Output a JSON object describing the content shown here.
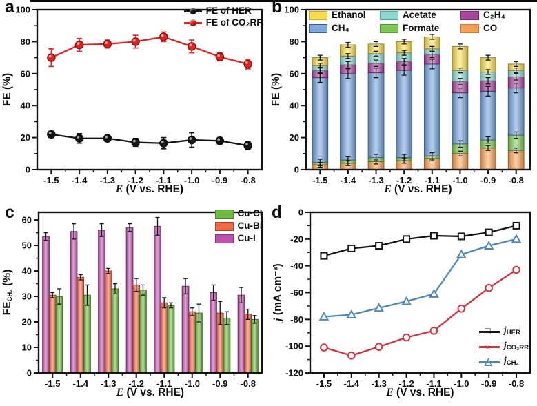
{
  "figure": {
    "background": "#ffffff",
    "frame_color": "#141414"
  },
  "shared": {
    "x_categories": [
      "-1.5",
      "-1.4",
      "-1.3",
      "-1.2",
      "-1.1",
      "-1.0",
      "-0.9",
      "-0.8"
    ],
    "xlabel": {
      "em": "E",
      "rest": " (V vs. RHE)"
    }
  },
  "panels": {
    "a": {
      "label": "a",
      "ylabel": {
        "main": "FE",
        "rest": " (%)"
      },
      "legend": [
        {
          "label": "FE of HER",
          "color": "#141414"
        },
        {
          "label": "FE of CO₂RR",
          "color": "#e3211f"
        }
      ]
    },
    "b": {
      "label": "b",
      "ylabel": {
        "main": "FE",
        "rest": " (%)"
      },
      "legend": [
        {
          "label": "Ethanol",
          "color": "#f7dc4e",
          "border": "#c9a727"
        },
        {
          "label": "Acetate",
          "color": "#8fd8d2",
          "border": "#49b0a8"
        },
        {
          "label": "C₂H₄",
          "color": "#a8479e",
          "border": "#7c2a74"
        },
        {
          "label": "CH₄",
          "color": "#7fa8dc",
          "border": "#2f62a8"
        },
        {
          "label": "Formate",
          "color": "#7dc453",
          "border": "#4f9a2e"
        },
        {
          "label": "CO",
          "color": "#f5a054",
          "border": "#d87828"
        }
      ]
    },
    "c": {
      "label": "c",
      "ylabel": {
        "main": "FE",
        "sub": "CH₄",
        "rest": " (%)"
      },
      "legend": [
        {
          "label": "Cu-Cl",
          "color": "#6cba3e",
          "border": "#47891f"
        },
        {
          "label": "Cu-Br",
          "color": "#ee6a48",
          "border": "#c43d1c"
        },
        {
          "label": "Cu-I",
          "color": "#c050ae",
          "border": "#8e2f7e"
        }
      ]
    },
    "d": {
      "label": "d",
      "ylabel": {
        "main": "j",
        "rest": " (mA cm⁻³)"
      },
      "legend": [
        {
          "main": "j",
          "sub": "HER",
          "glyph": "□",
          "color": "#141414"
        },
        {
          "main": "j",
          "sub": "CO₂RR",
          "glyph": "○",
          "color": "#d6303e"
        },
        {
          "main": "j",
          "sub": "CH₄",
          "glyph": "△",
          "color": "#4e87b5"
        }
      ]
    }
  },
  "chart_data": [
    {
      "panel": "a",
      "type": "line",
      "title": "",
      "xlabel": "E (V vs. RHE)",
      "ylabel": "FE (%)",
      "categories": [
        "-1.5",
        "-1.4",
        "-1.3",
        "-1.2",
        "-1.1",
        "-1.0",
        "-0.9",
        "-0.8"
      ],
      "ylim": [
        0,
        100
      ],
      "yticks": [
        0,
        20,
        40,
        60,
        80,
        100
      ],
      "legend_position": "top-right",
      "grid": false,
      "series": [
        {
          "name": "FE of HER",
          "color": "#141414",
          "marker": "circle",
          "marker_filled": true,
          "values": [
            22,
            19.5,
            19.5,
            17,
            16.5,
            18.5,
            18,
            15
          ],
          "err": [
            2,
            3,
            2,
            2.5,
            3.5,
            4.5,
            2,
            2.5
          ]
        },
        {
          "name": "FE of CO₂RR",
          "color": "#e3211f",
          "marker": "circle",
          "marker_filled": true,
          "values": [
            70,
            78,
            78.5,
            80,
            83,
            77,
            70.5,
            66
          ],
          "err": [
            5.5,
            4,
            2.5,
            4,
            3,
            4,
            2.5,
            3
          ]
        }
      ]
    },
    {
      "panel": "b",
      "type": "stacked-bar",
      "title": "",
      "xlabel": "E (V vs. RHE)",
      "ylabel": "FE (%)",
      "categories": [
        "-1.5",
        "-1.4",
        "-1.3",
        "-1.2",
        "-1.1",
        "-1.0",
        "-0.9",
        "-0.8"
      ],
      "ylim": [
        0,
        100
      ],
      "yticks": [
        0,
        20,
        40,
        60,
        80,
        100
      ],
      "legend_position": "top",
      "grid": false,
      "stack_order_note": "bottom to top",
      "series": [
        {
          "name": "CO",
          "color": "#f5a054",
          "values": [
            3,
            4,
            5,
            5.5,
            7,
            10,
            13.5,
            12
          ],
          "err": 1.5
        },
        {
          "name": "Formate",
          "color": "#7dc453",
          "values": [
            1.5,
            2,
            2.5,
            2,
            1.5,
            6,
            5,
            9.5
          ],
          "err": 2
        },
        {
          "name": "CH₄",
          "color": "#6f9fd8",
          "values": [
            53,
            54,
            53,
            54.5,
            57.5,
            32,
            30.5,
            29.5
          ],
          "err": 3
        },
        {
          "name": "C₂H₄",
          "color": "#a8479e",
          "values": [
            4.5,
            5.5,
            6,
            5.5,
            6,
            7,
            6.5,
            7
          ],
          "err": 2
        },
        {
          "name": "Acetate",
          "color": "#8fd8d2",
          "values": [
            3,
            5.5,
            6,
            5.5,
            3.5,
            7,
            5.5,
            4
          ],
          "err": 1.5
        },
        {
          "name": "Ethanol",
          "color": "#f7dc4e",
          "values": [
            5,
            7,
            6,
            7,
            7.5,
            15,
            9,
            4
          ],
          "err": 1.5
        }
      ]
    },
    {
      "panel": "c",
      "type": "grouped-bar",
      "title": "",
      "xlabel": "E (V vs. RHE)",
      "ylabel": "FE_CH4 (%)",
      "categories": [
        "-1.5",
        "-1.4",
        "-1.3",
        "-1.2",
        "-1.1",
        "-1.0",
        "-0.9",
        "-0.8"
      ],
      "ylim": [
        0,
        63
      ],
      "yticks": [
        0,
        10,
        20,
        30,
        40,
        50,
        60
      ],
      "legend_position": "top-right",
      "grid": false,
      "series": [
        {
          "name": "Cu-I",
          "color": "#c050ae",
          "values": [
            53.5,
            55.5,
            56,
            57,
            57.5,
            34,
            31.5,
            30.5
          ],
          "err": [
            1.5,
            3,
            2.5,
            1.5,
            3.5,
            3,
            3,
            3
          ]
        },
        {
          "name": "Cu-Br",
          "color": "#ee6a48",
          "values": [
            30.5,
            37.5,
            40,
            34.5,
            27.5,
            24,
            23.5,
            23
          ],
          "err": [
            1,
            1,
            1,
            2.5,
            2,
            1.5,
            4.5,
            2
          ]
        },
        {
          "name": "Cu-Cl",
          "color": "#6cba3e",
          "values": [
            30,
            30.5,
            33,
            32.5,
            26.5,
            23.5,
            21.5,
            21
          ],
          "err": [
            3,
            4,
            2,
            2,
            1,
            3.5,
            2.5,
            1.5
          ]
        }
      ]
    },
    {
      "panel": "d",
      "type": "line",
      "title": "",
      "xlabel": "E (V vs. RHE)",
      "ylabel": "j (mA cm⁻³)",
      "categories": [
        "-1.5",
        "-1.4",
        "-1.3",
        "-1.2",
        "-1.1",
        "-1.0",
        "-0.9",
        "-0.8"
      ],
      "ylim": [
        -120,
        0
      ],
      "yticks": [
        0,
        -20,
        -40,
        -60,
        -80,
        -100,
        -120
      ],
      "legend_position": "bottom-right",
      "grid": false,
      "series": [
        {
          "name": "j_HER",
          "color": "#141414",
          "marker": "square",
          "marker_filled": false,
          "values": [
            -32.5,
            -27,
            -25,
            -20,
            -17.5,
            -18,
            -15,
            -10
          ]
        },
        {
          "name": "j_CO2RR",
          "color": "#d6303e",
          "marker": "circle",
          "marker_filled": false,
          "values": [
            -101,
            -107,
            -100.5,
            -93.5,
            -88.5,
            -72,
            -56.5,
            -43
          ]
        },
        {
          "name": "j_CH4",
          "color": "#4e87b5",
          "marker": "triangle",
          "marker_filled": false,
          "values": [
            -78,
            -76.5,
            -71.5,
            -66.5,
            -61,
            -31.5,
            -25,
            -20
          ]
        }
      ]
    }
  ]
}
